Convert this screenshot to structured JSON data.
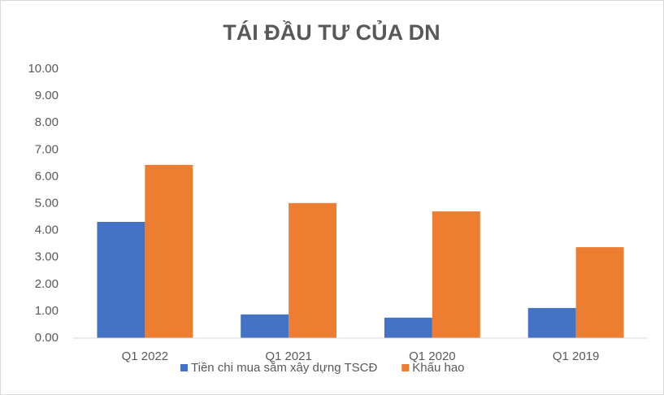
{
  "chart_data": {
    "type": "bar",
    "title": "TÁI ĐẦU TƯ CỦA DN",
    "categories": [
      "Q1 2022",
      "Q1 2021",
      "Q1 2020",
      "Q1 2019"
    ],
    "series": [
      {
        "name": "Tiền chi mua sắm xây dựng TSCĐ",
        "color": "#4472c4",
        "values": [
          4.32,
          0.88,
          0.76,
          1.12
        ]
      },
      {
        "name": "Khấu hao",
        "color": "#ed7d31",
        "values": [
          6.44,
          5.02,
          4.71,
          3.38
        ]
      }
    ],
    "ylim": [
      0,
      10
    ],
    "yticks": [
      {
        "value": 0,
        "label": "0.00"
      },
      {
        "value": 1,
        "label": "1.00"
      },
      {
        "value": 2,
        "label": "2.00"
      },
      {
        "value": 3,
        "label": "3.00"
      },
      {
        "value": 4,
        "label": "4.00"
      },
      {
        "value": 5,
        "label": "5.00"
      },
      {
        "value": 6,
        "label": "6.00"
      },
      {
        "value": 7,
        "label": "7.00"
      },
      {
        "value": 8,
        "label": "8.00"
      },
      {
        "value": 9,
        "label": "9.00"
      },
      {
        "value": 10,
        "label": "10.00"
      }
    ],
    "grid": false,
    "legend": "bottom"
  }
}
